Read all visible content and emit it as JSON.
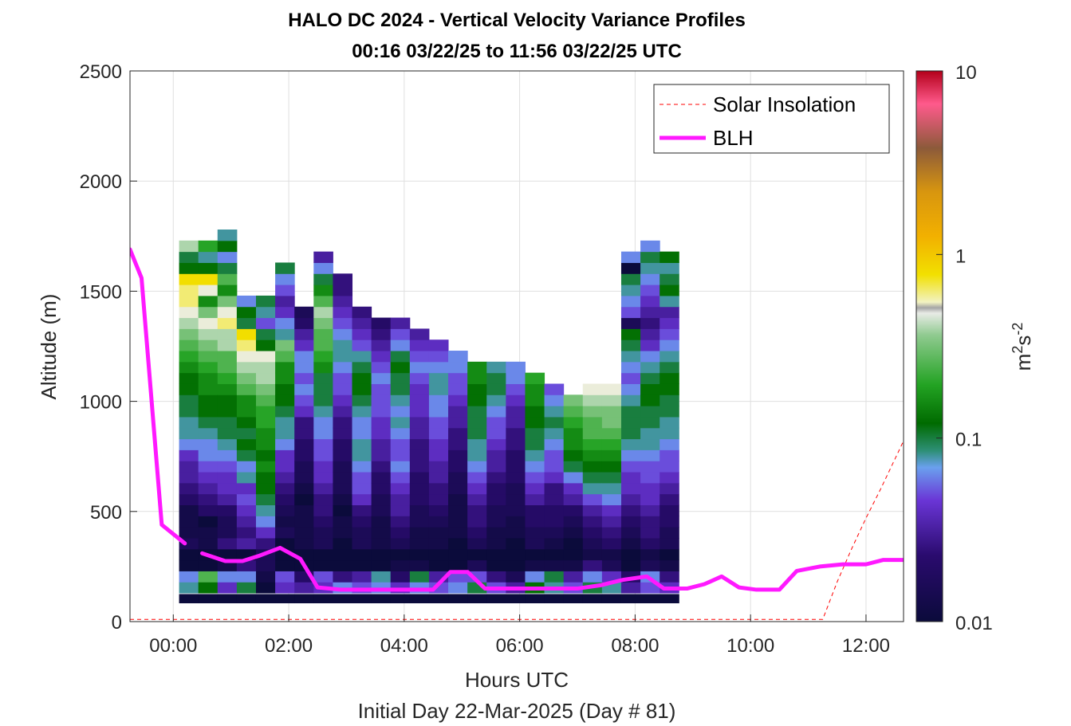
{
  "chart_data": {
    "type": "heatmap",
    "title": "HALO DC 2024 - Vertical Velocity Variance Profiles",
    "subtitle": "00:16 03/22/25 to 11:56 03/22/25  UTC",
    "xlabel": "Hours UTC",
    "xlabel2": "Initial Day 22-Mar-2025 (Day # 81)",
    "ylabel": "Altitude (m)",
    "xlim": [
      -0.75,
      12.65
    ],
    "ylim": [
      0,
      2500
    ],
    "x_ticks": [
      0,
      2,
      4,
      6,
      8,
      10,
      12
    ],
    "x_tick_labels": [
      "00:00",
      "02:00",
      "04:00",
      "06:00",
      "08:00",
      "10:00",
      "12:00"
    ],
    "y_ticks": [
      0,
      500,
      1000,
      1500,
      2000,
      2500
    ],
    "y_tick_labels": [
      "0",
      "500",
      "1000",
      "1500",
      "2000",
      "2500"
    ],
    "grid": true,
    "legend_position": "top-right",
    "colorbar": {
      "label_base": "m",
      "label_exp1": "2",
      "label_mid": "s",
      "label_exp2": "-2",
      "scale": "log",
      "range": [
        0.01,
        10
      ],
      "ticks": [
        0.01,
        0.1,
        1,
        10
      ],
      "tick_labels": [
        "0.01",
        "0.1",
        "1",
        "10"
      ]
    },
    "heatmap": {
      "x_start": 0.267,
      "x_step": 0.333,
      "y_start": 105,
      "y_step": 50,
      "columns": 26,
      "description_levels": "log10 variance per cell; rows bottom to top",
      "profiles": [
        [
          -2.0,
          -1.1,
          -1.2,
          -2.0,
          -2.0,
          -1.8,
          -1.9,
          -1.9,
          -1.9,
          -1.7,
          -1.6,
          -1.5,
          -1.5,
          -1.4,
          -1.2,
          -1.1,
          -1.1,
          -1.0,
          -1.0,
          -0.9,
          -0.9,
          -0.8,
          -0.7,
          -0.6,
          -0.5,
          -0.4,
          -0.3,
          -0.2,
          -0.2,
          -0.1,
          -0.9,
          -1.0,
          -0.4
        ],
        [
          -2.0,
          -0.9,
          -0.6,
          -2.0,
          -2.0,
          -1.9,
          -1.9,
          -2.0,
          -1.7,
          -1.6,
          -1.5,
          -1.4,
          -1.3,
          -1.2,
          -1.2,
          -1.1,
          -1.0,
          -0.9,
          -0.9,
          -0.8,
          -0.8,
          -0.7,
          -0.6,
          -0.5,
          -0.4,
          -0.3,
          -0.5,
          -0.8,
          -0.3,
          -0.1,
          -0.9,
          -1.1,
          -0.7
        ],
        [
          -2.0,
          -1.4,
          -1.2,
          -1.9,
          -2.0,
          -1.6,
          -1.8,
          -1.8,
          -1.7,
          -1.5,
          -1.4,
          -1.4,
          -1.3,
          -1.2,
          -1.1,
          -1.0,
          -1.0,
          -0.9,
          -0.9,
          -0.8,
          -0.7,
          -0.6,
          -0.6,
          -0.4,
          -0.4,
          -0.2,
          -0.3,
          -0.5,
          -0.8,
          -0.6,
          -1.0,
          -1.2,
          -0.9,
          -1.1
        ],
        [
          -2.0,
          -1.0,
          -1.2,
          -1.6,
          -2.0,
          -1.5,
          -1.6,
          -1.5,
          -1.4,
          -1.3,
          -1.4,
          -1.1,
          -1.2,
          -1.0,
          -0.9,
          -1.0,
          -0.9,
          -0.8,
          -0.8,
          -0.6,
          -0.5,
          -0.4,
          -0.3,
          -0.2,
          -0.1,
          -1.0,
          -0.9,
          -1.2
        ],
        [
          -2.0,
          -2.0,
          -1.9,
          -1.8,
          -1.8,
          -1.6,
          -1.4,
          -1.2,
          -1.1,
          -1.0,
          -0.9,
          -0.9,
          -0.8,
          -0.9,
          -0.8,
          -0.8,
          -0.7,
          -0.7,
          -0.6,
          -0.5,
          -0.4,
          -0.4,
          -0.3,
          -0.9,
          -1.0,
          -1.3,
          -1.1,
          -1.0
        ],
        [
          -2.0,
          -1.4,
          -1.3,
          -2.0,
          -2.0,
          -2.0,
          -1.8,
          -1.9,
          -1.8,
          -1.7,
          -1.6,
          -1.5,
          -1.4,
          -1.4,
          -1.2,
          -1.1,
          -1.1,
          -1.0,
          -0.9,
          -0.9,
          -0.8,
          -0.8,
          -0.6,
          -0.5,
          -1.1,
          -1.2,
          -1.4,
          -1.5,
          -1.3,
          -1.2,
          -1.0
        ],
        [
          -2.0,
          -1.5,
          -1.7,
          -2.0,
          -2.0,
          -1.9,
          -1.9,
          -1.9,
          -1.9,
          -2.0,
          -1.9,
          -1.8,
          -1.8,
          -1.7,
          -1.7,
          -1.6,
          -1.6,
          -1.4,
          -1.3,
          -1.2,
          -1.3,
          -1.2,
          -1.2,
          -1.4,
          -1.5,
          -1.7,
          -1.8
        ],
        [
          -2.0,
          -1.4,
          -1.3,
          -2.0,
          -2.0,
          -1.8,
          -1.8,
          -1.7,
          -1.6,
          -1.6,
          -1.5,
          -1.4,
          -1.4,
          -1.3,
          -1.3,
          -1.2,
          -1.2,
          -1.1,
          -1.0,
          -1.0,
          -1.0,
          -0.8,
          -0.7,
          -0.6,
          -0.6,
          -0.5,
          -0.4,
          -0.6,
          -0.8,
          -1.0,
          -1.2,
          -1.5
        ],
        [
          -2.0,
          -1.2,
          -1.6,
          -2.0,
          -2.0,
          -2.0,
          -1.9,
          -1.9,
          -2.0,
          -1.9,
          -1.8,
          -1.8,
          -1.8,
          -1.7,
          -1.7,
          -1.6,
          -1.6,
          -1.5,
          -1.4,
          -1.3,
          -1.3,
          -1.2,
          -1.1,
          -1.1,
          -1.2,
          -1.3,
          -1.4,
          -1.5,
          -1.6,
          -1.6
        ],
        [
          -2.0,
          -1.3,
          -1.5,
          -2.0,
          -2.0,
          -1.8,
          -1.8,
          -1.7,
          -1.6,
          -1.4,
          -1.3,
          -1.3,
          -1.2,
          -1.1,
          -1.1,
          -1.2,
          -1.2,
          -1.1,
          -1.0,
          -0.9,
          -0.9,
          -1.0,
          -1.1,
          -1.3,
          -1.4,
          -1.5,
          -1.6
        ],
        [
          -2.0,
          -1.2,
          -1.1,
          -2.0,
          -2.0,
          -1.9,
          -1.9,
          -1.9,
          -1.8,
          -1.8,
          -1.7,
          -1.7,
          -1.6,
          -1.5,
          -1.5,
          -1.4,
          -1.4,
          -1.3,
          -1.3,
          -1.3,
          -1.2,
          -1.3,
          -1.4,
          -1.5,
          -1.6,
          -1.7
        ],
        [
          -2.0,
          -1.4,
          -1.7,
          -1.9,
          -2.0,
          -1.8,
          -1.7,
          -1.6,
          -1.5,
          -1.5,
          -1.4,
          -1.3,
          -1.2,
          -1.3,
          -1.3,
          -1.2,
          -1.1,
          -1.2,
          -1.1,
          -1.0,
          -1.0,
          -0.9,
          -1.0,
          -1.2,
          -1.3,
          -1.5
        ],
        [
          -2.0,
          -1.2,
          -1.0,
          -1.9,
          -2.0,
          -1.9,
          -1.9,
          -1.8,
          -1.8,
          -1.7,
          -1.7,
          -1.7,
          -1.6,
          -1.6,
          -1.6,
          -1.5,
          -1.5,
          -1.4,
          -1.4,
          -1.4,
          -1.3,
          -1.2,
          -1.3,
          -1.4,
          -1.5
        ],
        [
          -2.0,
          -1.3,
          -1.5,
          -2.0,
          -2.0,
          -1.9,
          -1.9,
          -1.8,
          -1.7,
          -1.6,
          -1.6,
          -1.5,
          -1.5,
          -1.4,
          -1.4,
          -1.3,
          -1.3,
          -1.2,
          -1.2,
          -1.1,
          -1.1,
          -1.2,
          -1.3,
          -1.4
        ],
        [
          -2.0,
          -1.2,
          -1.3,
          -2.0,
          -2.0,
          -2.0,
          -1.9,
          -1.9,
          -1.9,
          -1.9,
          -1.8,
          -1.8,
          -1.7,
          -1.7,
          -1.6,
          -1.6,
          -1.5,
          -1.5,
          -1.4,
          -1.3,
          -1.3,
          -1.2,
          -1.2
        ],
        [
          -2.0,
          -1.0,
          -1.3,
          -1.8,
          -2.0,
          -1.8,
          -1.7,
          -1.6,
          -1.6,
          -1.5,
          -1.4,
          -1.3,
          -1.2,
          -1.1,
          -1.1,
          -1.0,
          -1.0,
          -1.0,
          -0.9,
          -0.9,
          -0.8,
          -0.8
        ],
        [
          -2.0,
          -1.3,
          -1.6,
          -2.0,
          -2.0,
          -1.9,
          -1.9,
          -1.8,
          -1.8,
          -1.7,
          -1.7,
          -1.6,
          -1.5,
          -1.5,
          -1.4,
          -1.3,
          -1.3,
          -1.2,
          -1.1,
          -1.0,
          -1.0,
          -1.1
        ],
        [
          -2.0,
          -1.5,
          -1.8,
          -2.0,
          -2.0,
          -2.0,
          -1.9,
          -1.9,
          -1.8,
          -1.8,
          -1.8,
          -1.7,
          -1.7,
          -1.7,
          -1.6,
          -1.6,
          -1.5,
          -1.5,
          -1.4,
          -1.3,
          -1.2,
          -1.2
        ],
        [
          -2.0,
          -0.9,
          -1.2,
          -1.9,
          -2.0,
          -1.8,
          -1.8,
          -1.7,
          -1.7,
          -1.5,
          -1.4,
          -1.3,
          -1.2,
          -1.1,
          -1.0,
          -1.0,
          -0.9,
          -0.9,
          -0.8,
          -0.8,
          -0.7
        ],
        [
          -2.0,
          -1.1,
          -1.0,
          -1.9,
          -2.0,
          -1.9,
          -1.8,
          -1.7,
          -1.7,
          -1.6,
          -1.6,
          -1.4,
          -1.3,
          -1.3,
          -1.2,
          -1.1,
          -1.0,
          -1.1,
          -1.2,
          -1.3
        ],
        [
          -2.0,
          -1.3,
          -1.5,
          -1.9,
          -2.0,
          -2.0,
          -1.9,
          -1.8,
          -1.7,
          -1.5,
          -1.4,
          -1.2,
          -1.0,
          -0.9,
          -0.8,
          -0.8,
          -0.7,
          -0.6,
          -0.5
        ],
        [
          -2.0,
          -1.0,
          -1.2,
          -1.6,
          -1.9,
          -1.8,
          -1.7,
          -1.6,
          -1.5,
          -1.3,
          -1.1,
          -1.0,
          -0.9,
          -0.8,
          -0.7,
          -0.6,
          -0.6,
          -0.5,
          -0.4,
          -0.3
        ],
        [
          -2.0,
          -1.1,
          -1.4,
          -1.8,
          -1.9,
          -1.7,
          -1.6,
          -1.5,
          -1.4,
          -1.2,
          -1.1,
          -1.0,
          -0.9,
          -0.8,
          -0.7,
          -0.6,
          -0.5,
          -0.5,
          -0.4,
          -0.3
        ],
        [
          -2.0,
          -1.5,
          -1.7,
          -2.0,
          -2.0,
          -1.9,
          -1.8,
          -1.7,
          -1.6,
          -1.5,
          -1.4,
          -1.4,
          -1.3,
          -1.2,
          -1.1,
          -1.0,
          -1.0,
          -1.0,
          -1.1,
          -1.2,
          -1.3,
          -1.2,
          -1.1,
          -1.0,
          -0.9,
          -1.8,
          -1.3,
          -1.2,
          -1.1,
          -1.0,
          -2.0,
          -1.2
        ],
        [
          -2.0,
          -1.3,
          -1.2,
          -1.8,
          -1.9,
          -1.7,
          -1.6,
          -1.6,
          -1.5,
          -1.4,
          -1.4,
          -1.3,
          -1.3,
          -1.2,
          -1.1,
          -1.1,
          -1.0,
          -1.0,
          -0.9,
          -0.9,
          -1.0,
          -1.1,
          -1.2,
          -1.4,
          -1.5,
          -1.6,
          -1.5,
          -1.4,
          -1.3,
          -1.2,
          -1.1,
          -1.0,
          -1.2
        ],
        [
          -2.0,
          -1.4,
          -1.6,
          -1.9,
          -2.0,
          -1.8,
          -1.8,
          -1.7,
          -1.7,
          -1.6,
          -1.5,
          -1.4,
          -1.3,
          -1.3,
          -1.2,
          -1.1,
          -1.1,
          -1.0,
          -1.0,
          -0.9,
          -0.9,
          -1.0,
          -1.1,
          -1.2,
          -1.3,
          -1.4,
          -1.5,
          -1.1,
          -0.9,
          -1.0,
          -1.1,
          -0.9
        ]
      ]
    },
    "series": [
      {
        "name": "Solar Insolation",
        "style": "dashed",
        "color": "#ff0000",
        "x": [
          -0.75,
          11.25,
          11.5,
          11.75,
          12.0,
          12.25,
          12.65
        ],
        "y": [
          10,
          10,
          180,
          330,
          470,
          600,
          820
        ]
      },
      {
        "name": "BLH",
        "style": "solid",
        "color": "#ff19ff",
        "segments": [
          {
            "x": [
              -0.75,
              -0.55,
              -0.2,
              0.2
            ],
            "y": [
              1690,
              1560,
              440,
              355
            ]
          },
          {
            "x": [
              0.5,
              0.9,
              1.2,
              1.5,
              1.85,
              2.2,
              2.5,
              2.9,
              3.3,
              3.7,
              4.1,
              4.5,
              4.8,
              5.1,
              5.4,
              5.8,
              6.2,
              6.6,
              7.0,
              7.4,
              7.8,
              8.2,
              8.5,
              8.9,
              9.2,
              9.5,
              9.8,
              10.1,
              10.5,
              10.8,
              11.2,
              11.6,
              12.0,
              12.3,
              12.65
            ],
            "y": [
              310,
              275,
              275,
              300,
              335,
              285,
              155,
              145,
              145,
              145,
              145,
              145,
              225,
              225,
              150,
              150,
              150,
              150,
              150,
              165,
              190,
              205,
              150,
              150,
              170,
              205,
              155,
              145,
              145,
              230,
              250,
              260,
              260,
              280,
              280
            ]
          }
        ]
      }
    ]
  }
}
